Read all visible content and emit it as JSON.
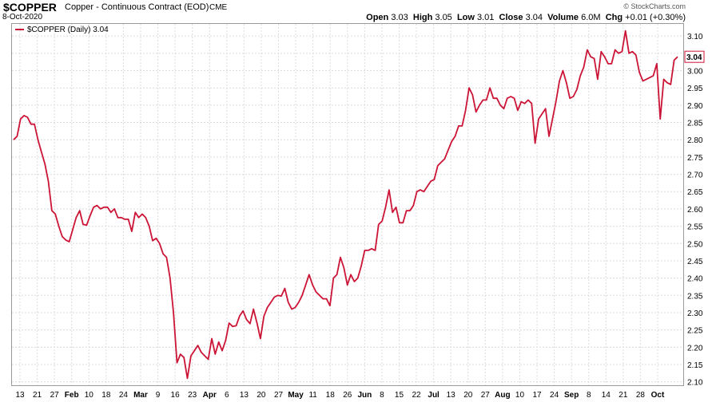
{
  "header": {
    "symbol": "$COPPER",
    "description": "Copper - Continuous Contract (EOD)",
    "exchange": "CME",
    "date": "8-Oct-2020",
    "watermark": "© StockCharts.com",
    "open_label": "Open",
    "open": "3.03",
    "high_label": "High",
    "high": "3.05",
    "low_label": "Low",
    "low": "3.01",
    "close_label": "Close",
    "close": "3.04",
    "volume_label": "Volume",
    "volume": "6.0M",
    "chg_label": "Chg",
    "chg": "+0.01 (+0.30%)"
  },
  "chart_data": {
    "type": "line",
    "legend": "$COPPER (Daily) 3.04",
    "last_value_label": "3.04",
    "line_color": "#cc1436",
    "ylim": [
      2.09,
      3.135
    ],
    "y_ticks": [
      "2.10",
      "2.15",
      "2.20",
      "2.25",
      "2.30",
      "2.35",
      "2.40",
      "2.45",
      "2.50",
      "2.55",
      "2.60",
      "2.65",
      "2.70",
      "2.75",
      "2.80",
      "2.85",
      "2.90",
      "2.95",
      "3.00",
      "3.05",
      "3.10"
    ],
    "x_ticks": [
      {
        "label": "13",
        "bold": false
      },
      {
        "label": "21",
        "bold": false
      },
      {
        "label": "27",
        "bold": false
      },
      {
        "label": "Feb",
        "bold": true
      },
      {
        "label": "10",
        "bold": false
      },
      {
        "label": "18",
        "bold": false
      },
      {
        "label": "24",
        "bold": false
      },
      {
        "label": "Mar",
        "bold": true
      },
      {
        "label": "9",
        "bold": false
      },
      {
        "label": "16",
        "bold": false
      },
      {
        "label": "23",
        "bold": false
      },
      {
        "label": "Apr",
        "bold": true
      },
      {
        "label": "6",
        "bold": false
      },
      {
        "label": "13",
        "bold": false
      },
      {
        "label": "20",
        "bold": false
      },
      {
        "label": "27",
        "bold": false
      },
      {
        "label": "May",
        "bold": true
      },
      {
        "label": "11",
        "bold": false
      },
      {
        "label": "18",
        "bold": false
      },
      {
        "label": "26",
        "bold": false
      },
      {
        "label": "Jun",
        "bold": true
      },
      {
        "label": "8",
        "bold": false
      },
      {
        "label": "15",
        "bold": false
      },
      {
        "label": "22",
        "bold": false
      },
      {
        "label": "Jul",
        "bold": true
      },
      {
        "label": "13",
        "bold": false
      },
      {
        "label": "20",
        "bold": false
      },
      {
        "label": "27",
        "bold": false
      },
      {
        "label": "Aug",
        "bold": true
      },
      {
        "label": "10",
        "bold": false
      },
      {
        "label": "17",
        "bold": false
      },
      {
        "label": "24",
        "bold": false
      },
      {
        "label": "Sep",
        "bold": true
      },
      {
        "label": "8",
        "bold": false
      },
      {
        "label": "14",
        "bold": false
      },
      {
        "label": "21",
        "bold": false
      },
      {
        "label": "28",
        "bold": false
      },
      {
        "label": "Oct",
        "bold": true
      }
    ],
    "values": [
      2.8,
      2.81,
      2.86,
      2.87,
      2.865,
      2.845,
      2.845,
      2.8,
      2.765,
      2.73,
      2.68,
      2.595,
      2.585,
      2.55,
      2.52,
      2.51,
      2.505,
      2.54,
      2.575,
      2.595,
      2.555,
      2.553,
      2.58,
      2.605,
      2.61,
      2.6,
      2.605,
      2.605,
      2.59,
      2.6,
      2.575,
      2.575,
      2.57,
      2.57,
      2.535,
      2.59,
      2.575,
      2.585,
      2.575,
      2.55,
      2.508,
      2.515,
      2.5,
      2.47,
      2.46,
      2.4,
      2.3,
      2.155,
      2.18,
      2.17,
      2.11,
      2.175,
      2.19,
      2.205,
      2.185,
      2.175,
      2.165,
      2.225,
      2.18,
      2.215,
      2.19,
      2.22,
      2.27,
      2.26,
      2.262,
      2.29,
      2.305,
      2.28,
      2.268,
      2.31,
      2.27,
      2.225,
      2.29,
      2.315,
      2.33,
      2.345,
      2.35,
      2.348,
      2.37,
      2.33,
      2.31,
      2.315,
      2.33,
      2.35,
      2.38,
      2.41,
      2.38,
      2.36,
      2.35,
      2.34,
      2.34,
      2.32,
      2.4,
      2.41,
      2.46,
      2.43,
      2.38,
      2.41,
      2.39,
      2.4,
      2.435,
      2.48,
      2.48,
      2.485,
      2.48,
      2.555,
      2.565,
      2.605,
      2.655,
      2.59,
      2.605,
      2.56,
      2.56,
      2.595,
      2.595,
      2.61,
      2.65,
      2.655,
      2.65,
      2.665,
      2.68,
      2.685,
      2.725,
      2.735,
      2.745,
      2.77,
      2.795,
      2.81,
      2.84,
      2.84,
      2.885,
      2.95,
      2.93,
      2.88,
      2.9,
      2.915,
      2.915,
      2.95,
      2.92,
      2.92,
      2.9,
      2.89,
      2.92,
      2.925,
      2.92,
      2.885,
      2.91,
      2.905,
      2.915,
      2.905,
      2.79,
      2.86,
      2.875,
      2.89,
      2.81,
      2.86,
      2.91,
      2.97,
      3.0,
      2.965,
      2.92,
      2.925,
      2.945,
      2.985,
      3.01,
      3.06,
      3.04,
      3.035,
      2.975,
      3.055,
      3.04,
      3.02,
      3.02,
      3.06,
      3.05,
      3.055,
      3.115,
      3.05,
      3.055,
      3.045,
      2.995,
      2.97,
      2.975,
      2.98,
      2.985,
      3.02,
      2.86,
      2.975,
      2.965,
      2.96,
      3.03,
      3.04
    ]
  }
}
